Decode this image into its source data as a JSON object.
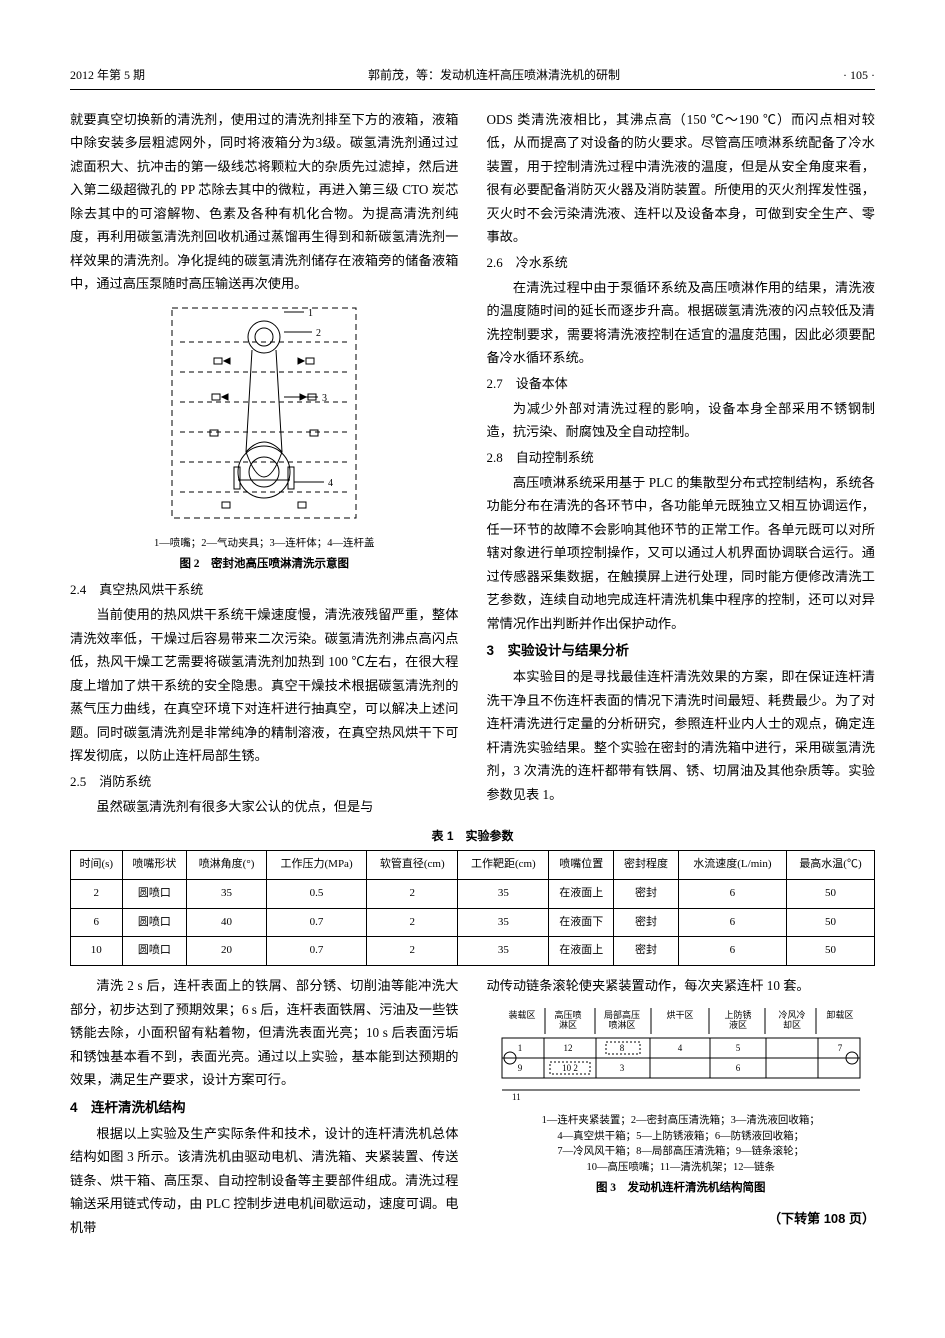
{
  "header": {
    "left": "2012 年第 5 期",
    "center": "郭前茂，等：发动机连杆高压喷淋清洗机的研制",
    "right": "· 105 ·"
  },
  "left_col": {
    "p1": "就要真空切换新的清洗剂，使用过的清洗剂排至下方的液箱，液箱中除安装多层粗滤网外，同时将液箱分为3级。碳氢清洗剂通过过滤面积大、抗冲击的第一级线芯将颗粒大的杂质先过滤掉，然后进入第二级超微孔的 PP 芯除去其中的微粒，再进入第三级 CTO 炭芯除去其中的可溶解物、色素及各种有机化合物。为提高清洗剂纯度，再利用碳氢清洗剂回收机通过蒸馏再生得到和新碳氢清洗剂一样效果的清洗剂。净化提纯的碳氢清洗剂储存在液箱旁的储备液箱中，通过高压泵随时高压输送再次使用。",
    "fig2": {
      "legend": "1—喷嘴；2—气动夹具；3—连杆体；4—连杆盖",
      "title": "图 2　密封池高压喷淋清洗示意图"
    },
    "h24": "2.4　真空热风烘干系统",
    "p24": "当前使用的热风烘干系统干燥速度慢，清洗液残留严重，整体清洗效率低，干燥过后容易带来二次污染。碳氢清洗剂沸点高闪点低，热风干燥工艺需要将碳氢清洗剂加热到 100 ℃左右，在很大程度上增加了烘干系统的安全隐患。真空干燥技术根据碳氢清洗剂的蒸气压力曲线，在真空环境下对连杆进行抽真空，可以解决上述问题。同时碳氢清洗剂是非常纯净的精制溶液，在真空热风烘干下可挥发彻底，以防止连杆局部生锈。",
    "h25": "2.5　消防系统",
    "p25": "虽然碳氢清洗剂有很多大家公认的优点，但是与"
  },
  "right_col": {
    "p_top": "ODS 类清洗液相比，其沸点高（150 ℃～190 ℃）而闪点相对较低，从而提高了对设备的防火要求。尽管高压喷淋系统配备了冷水装置，用于控制清洗过程中清洗液的温度，但是从安全角度来看，很有必要配备消防灭火器及消防装置。所使用的灭火剂挥发性强，灭火时不会污染清洗液、连杆以及设备本身，可做到安全生产、零事故。",
    "h26": "2.6　冷水系统",
    "p26": "在清洗过程中由于泵循环系统及高压喷淋作用的结果，清洗液的温度随时间的延长而逐步升高。根据碳氢清洗液的闪点较低及清洗控制要求，需要将清洗液控制在适宜的温度范围，因此必须要配备冷水循环系统。",
    "h27": "2.7　设备本体",
    "p27": "为减少外部对清洗过程的影响，设备本身全部采用不锈钢制造，抗污染、耐腐蚀及全自动控制。",
    "h28": "2.8　自动控制系统",
    "p28": "高压喷淋系统采用基于 PLC 的集散型分布式控制结构，系统各功能分布在清洗的各环节中，各功能单元既独立又相互协调运作，任一环节的故障不会影响其他环节的正常工作。各单元既可以对所辖对象进行单项控制操作，又可以通过人机界面协调联合运行。通过传感器采集数据，在触摸屏上进行处理，同时能方便修改清洗工艺参数，连续自动地完成连杆清洗机集中程序的控制，还可以对异常情况作出判断并作出保护动作。",
    "h3": "3　实验设计与结果分析",
    "p3": "本实验目的是寻找最佳连杆清洗效果的方案，即在保证连杆清洗干净且不伤连杆表面的情况下清洗时间最短、耗费最少。为了对连杆清洗进行定量的分析研究，参照连杆业内人士的观点，确定连杆清洗实验结果。整个实验在密封的清洗箱中进行，采用碳氢清洗剂，3 次清洗的连杆都带有铁屑、锈、切屑油及其他杂质等。实验参数见表 1。"
  },
  "table1": {
    "title": "表 1　实验参数",
    "columns": [
      "时间(s)",
      "喷嘴形状",
      "喷淋角度(°)",
      "工作压力(MPa)",
      "软管直径(cm)",
      "工作靶距(cm)",
      "喷嘴位置",
      "密封程度",
      "水流速度(L/min)",
      "最高水温(℃)"
    ],
    "rows": [
      [
        "2",
        "圆喷口",
        "35",
        "0.5",
        "2",
        "35",
        "在液面上",
        "密封",
        "6",
        "50"
      ],
      [
        "6",
        "圆喷口",
        "40",
        "0.7",
        "2",
        "35",
        "在液面下",
        "密封",
        "6",
        "50"
      ],
      [
        "10",
        "圆喷口",
        "20",
        "0.7",
        "2",
        "35",
        "在液面上",
        "密封",
        "6",
        "50"
      ]
    ],
    "font_size": 11,
    "border_color": "#000000",
    "col_align": [
      "center",
      "center",
      "center",
      "center",
      "center",
      "center",
      "center",
      "center",
      "center",
      "center"
    ]
  },
  "bottom_left": {
    "p_after_table": "清洗 2 s 后，连杆表面上的铁屑、部分锈、切削油等能冲洗大部分，初步达到了预期效果；6 s 后，连杆表面铁屑、污油及一些铁锈能去除，小面积留有粘着物，但清洗表面光亮；10 s 后表面污垢和锈蚀基本看不到，表面光亮。通过以上实验，基本能到达预期的效果，满足生产要求，设计方案可行。",
    "h4": "4　连杆清洗机结构",
    "p4": "根据以上实验及生产实际条件和技术，设计的连杆清洗机总体结构如图 3 所示。该清洗机由驱动电机、清洗箱、夹紧装置、传送链条、烘干箱、高压泵、自动控制设备等主要部件组成。清洗过程输送采用链式传动，由 PLC 控制步进电机间歇运动，速度可调。电机带"
  },
  "bottom_right": {
    "p_top": "动传动链条滚轮使夹紧装置动作，每次夹紧连杆 10 套。",
    "fig3": {
      "zones": [
        "装载区",
        "高压喷淋区",
        "局部高压喷淋区",
        "烘干区",
        "上防锈液区",
        "冷风冷却区",
        "卸载区"
      ],
      "zone_nums_top": [
        "1",
        "12",
        "8",
        "4",
        "5",
        "7"
      ],
      "zone_nums_bottom": [
        "9",
        "10 2",
        "3",
        "",
        "6",
        ""
      ],
      "bottom_num": "11",
      "legend_lines": [
        "1—连杆夹紧装置；2—密封高压清洗箱；3—清洗液回收箱；",
        "4—真空烘干箱；5—上防锈液箱；6—防锈液回收箱；",
        "7—冷风风干箱；8—局部高压清洗箱；9—链条滚轮；",
        "10—高压喷嘴；11—清洗机架；12—链条"
      ],
      "title": "图 3　发动机连杆清洗机结构简图"
    },
    "cont": "（下转第 108 页）"
  },
  "style": {
    "page_bg": "#ffffff",
    "text_color": "#000000",
    "body_font_size": 13.2,
    "line_height": 1.78,
    "header_rule_color": "#000000",
    "fig_stroke": "#000000",
    "fig_dash": "4 3"
  }
}
